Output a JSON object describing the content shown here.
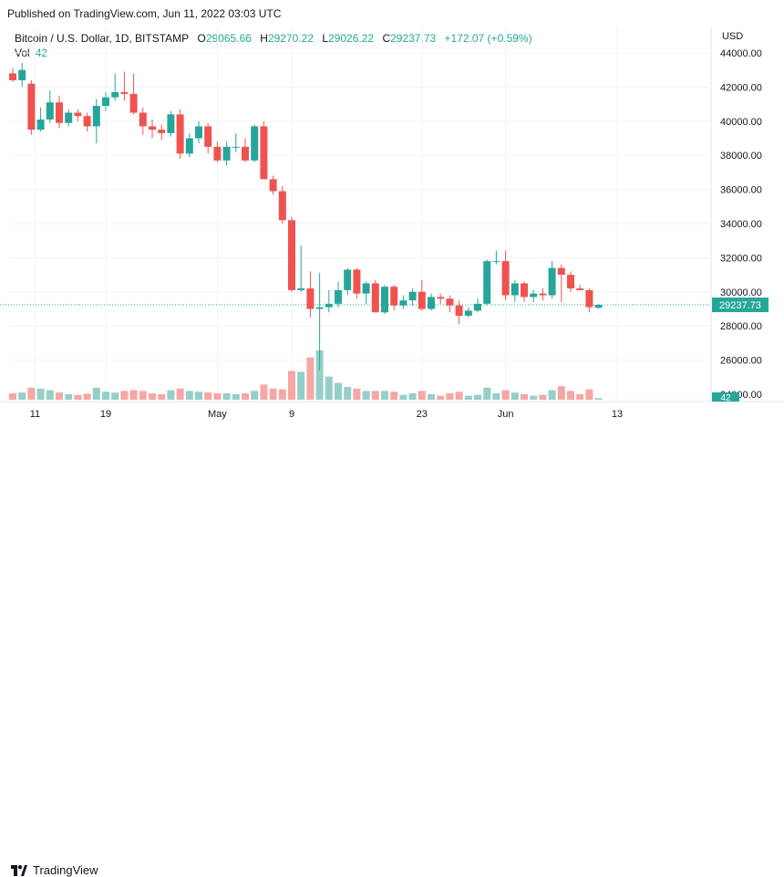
{
  "header": {
    "published": "Published on TradingView.com, Jun 11, 2022 03:03 UTC"
  },
  "legend": {
    "symbol": "Bitcoin / U.S. Dollar, 1D, BITSTAMP",
    "open_label": "O",
    "open": "29065.66",
    "high_label": "H",
    "high": "29270.22",
    "low_label": "L",
    "low": "29026.22",
    "close_label": "C",
    "close": "29237.73",
    "change": "+172.07 (+0.59%)",
    "vol_label": "Vol",
    "vol_value": "42"
  },
  "axis": {
    "currency": "USD",
    "last_price_badge": "29237.73",
    "volume_badge": "42"
  },
  "footer": {
    "brand": "TradingView"
  },
  "colors": {
    "up": "#26a69a",
    "down": "#ef5350",
    "up_volume": "#95cfc9",
    "down_volume": "#f5a7a5"
  },
  "chart_data": {
    "type": "candlestick",
    "y_ticks": [
      "24000.00",
      "26000.00",
      "28000.00",
      "30000.00",
      "32000.00",
      "34000.00",
      "36000.00",
      "38000.00",
      "40000.00",
      "42000.00",
      "44000.00"
    ],
    "ylim": [
      23000,
      44800
    ],
    "x_tick_labels": [
      {
        "label": "11",
        "index": 2
      },
      {
        "label": "19",
        "index": 10
      },
      {
        "label": "May",
        "index": 22
      },
      {
        "label": "9",
        "index": 30
      },
      {
        "label": "23",
        "index": 44
      },
      {
        "label": "Jun",
        "index": 53
      },
      {
        "label": "13",
        "index": 65
      }
    ],
    "candles": [
      {
        "o": 42800,
        "h": 43100,
        "l": 42300,
        "c": 42400,
        "v": 40
      },
      {
        "o": 42400,
        "h": 43400,
        "l": 42000,
        "c": 43000,
        "v": 45
      },
      {
        "o": 42200,
        "h": 42400,
        "l": 39200,
        "c": 39500,
        "v": 75
      },
      {
        "o": 39500,
        "h": 40800,
        "l": 39400,
        "c": 40100,
        "v": 70
      },
      {
        "o": 40100,
        "h": 41800,
        "l": 39900,
        "c": 41100,
        "v": 60
      },
      {
        "o": 41100,
        "h": 41500,
        "l": 39600,
        "c": 39900,
        "v": 45
      },
      {
        "o": 39900,
        "h": 40700,
        "l": 39700,
        "c": 40500,
        "v": 35
      },
      {
        "o": 40500,
        "h": 40700,
        "l": 40000,
        "c": 40300,
        "v": 30
      },
      {
        "o": 40300,
        "h": 40500,
        "l": 39400,
        "c": 39700,
        "v": 38
      },
      {
        "o": 39700,
        "h": 41300,
        "l": 38700,
        "c": 40900,
        "v": 75
      },
      {
        "o": 40900,
        "h": 41700,
        "l": 40600,
        "c": 41400,
        "v": 50
      },
      {
        "o": 41400,
        "h": 42800,
        "l": 41200,
        "c": 41700,
        "v": 45
      },
      {
        "o": 41700,
        "h": 42900,
        "l": 41200,
        "c": 41600,
        "v": 55
      },
      {
        "o": 41600,
        "h": 42800,
        "l": 40400,
        "c": 40500,
        "v": 60
      },
      {
        "o": 40500,
        "h": 40800,
        "l": 39200,
        "c": 39700,
        "v": 55
      },
      {
        "o": 39700,
        "h": 40100,
        "l": 39000,
        "c": 39500,
        "v": 40
      },
      {
        "o": 39500,
        "h": 39800,
        "l": 38900,
        "c": 39300,
        "v": 35
      },
      {
        "o": 39300,
        "h": 40600,
        "l": 39100,
        "c": 40400,
        "v": 60
      },
      {
        "o": 40400,
        "h": 40700,
        "l": 37800,
        "c": 38100,
        "v": 70
      },
      {
        "o": 38100,
        "h": 39300,
        "l": 37900,
        "c": 39000,
        "v": 55
      },
      {
        "o": 39000,
        "h": 40000,
        "l": 38700,
        "c": 39700,
        "v": 50
      },
      {
        "o": 39700,
        "h": 39900,
        "l": 38100,
        "c": 38500,
        "v": 45
      },
      {
        "o": 38500,
        "h": 38800,
        "l": 37600,
        "c": 37700,
        "v": 40
      },
      {
        "o": 37700,
        "h": 38800,
        "l": 37400,
        "c": 38500,
        "v": 40
      },
      {
        "o": 38500,
        "h": 39300,
        "l": 38200,
        "c": 38500,
        "v": 35
      },
      {
        "o": 38500,
        "h": 39000,
        "l": 37600,
        "c": 37700,
        "v": 40
      },
      {
        "o": 37700,
        "h": 39800,
        "l": 37600,
        "c": 39700,
        "v": 55
      },
      {
        "o": 39700,
        "h": 40000,
        "l": 36600,
        "c": 36600,
        "v": 95
      },
      {
        "o": 36600,
        "h": 36800,
        "l": 35700,
        "c": 35900,
        "v": 70
      },
      {
        "o": 35900,
        "h": 36200,
        "l": 34000,
        "c": 34200,
        "v": 65
      },
      {
        "o": 34200,
        "h": 34400,
        "l": 30000,
        "c": 30100,
        "v": 180
      },
      {
        "o": 30100,
        "h": 32700,
        "l": 30000,
        "c": 30200,
        "v": 175
      },
      {
        "o": 30200,
        "h": 31200,
        "l": 28500,
        "c": 29000,
        "v": 265
      },
      {
        "o": 29000,
        "h": 31100,
        "l": 25400,
        "c": 29100,
        "v": 310
      },
      {
        "o": 29100,
        "h": 30100,
        "l": 28800,
        "c": 29300,
        "v": 145
      },
      {
        "o": 29300,
        "h": 30600,
        "l": 29100,
        "c": 30100,
        "v": 105
      },
      {
        "o": 30100,
        "h": 31400,
        "l": 29800,
        "c": 31300,
        "v": 80
      },
      {
        "o": 31300,
        "h": 31400,
        "l": 29600,
        "c": 29900,
        "v": 70
      },
      {
        "o": 29900,
        "h": 30600,
        "l": 29300,
        "c": 30500,
        "v": 55
      },
      {
        "o": 30500,
        "h": 30700,
        "l": 28800,
        "c": 28800,
        "v": 55
      },
      {
        "o": 28800,
        "h": 30400,
        "l": 28700,
        "c": 30300,
        "v": 55
      },
      {
        "o": 30300,
        "h": 30400,
        "l": 28900,
        "c": 29200,
        "v": 50
      },
      {
        "o": 29200,
        "h": 29800,
        "l": 29000,
        "c": 29500,
        "v": 30
      },
      {
        "o": 29500,
        "h": 30200,
        "l": 29200,
        "c": 30000,
        "v": 40
      },
      {
        "o": 30000,
        "h": 30700,
        "l": 28900,
        "c": 29000,
        "v": 55
      },
      {
        "o": 29000,
        "h": 29900,
        "l": 28900,
        "c": 29700,
        "v": 35
      },
      {
        "o": 29700,
        "h": 29900,
        "l": 29300,
        "c": 29600,
        "v": 25
      },
      {
        "o": 29600,
        "h": 29800,
        "l": 28800,
        "c": 29200,
        "v": 40
      },
      {
        "o": 29200,
        "h": 29500,
        "l": 28100,
        "c": 28600,
        "v": 50
      },
      {
        "o": 28600,
        "h": 29100,
        "l": 28500,
        "c": 28900,
        "v": 25
      },
      {
        "o": 28900,
        "h": 29600,
        "l": 28800,
        "c": 29300,
        "v": 30
      },
      {
        "o": 29300,
        "h": 31900,
        "l": 29200,
        "c": 31800,
        "v": 75
      },
      {
        "o": 31800,
        "h": 32400,
        "l": 31600,
        "c": 31800,
        "v": 40
      },
      {
        "o": 31800,
        "h": 32400,
        "l": 29500,
        "c": 29800,
        "v": 60
      },
      {
        "o": 29800,
        "h": 30700,
        "l": 29400,
        "c": 30500,
        "v": 45
      },
      {
        "o": 30500,
        "h": 30600,
        "l": 29400,
        "c": 29700,
        "v": 35
      },
      {
        "o": 29700,
        "h": 30100,
        "l": 29400,
        "c": 29900,
        "v": 25
      },
      {
        "o": 29900,
        "h": 30200,
        "l": 29500,
        "c": 29800,
        "v": 30
      },
      {
        "o": 29800,
        "h": 31800,
        "l": 29600,
        "c": 31400,
        "v": 60
      },
      {
        "o": 31400,
        "h": 31600,
        "l": 29400,
        "c": 31000,
        "v": 85
      },
      {
        "o": 31000,
        "h": 31200,
        "l": 30000,
        "c": 30200,
        "v": 55
      },
      {
        "o": 30200,
        "h": 30400,
        "l": 30100,
        "c": 30100,
        "v": 35
      },
      {
        "o": 30100,
        "h": 30200,
        "l": 28800,
        "c": 29100,
        "v": 65
      },
      {
        "o": 29065.66,
        "h": 29270.22,
        "l": 29026.22,
        "c": 29237.73,
        "v": 10
      }
    ]
  }
}
